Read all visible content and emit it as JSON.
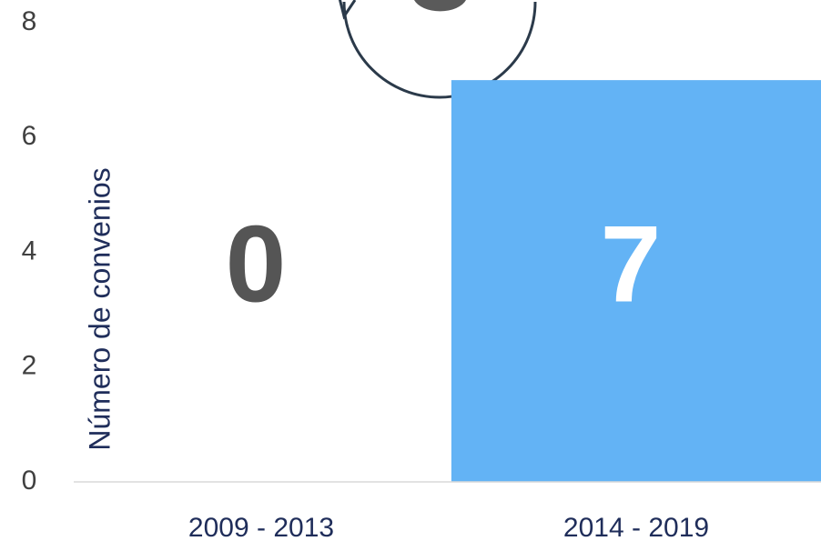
{
  "chart_data": {
    "type": "bar",
    "y_label": "Número de convenios",
    "categories": [
      "2009 - 2013",
      "2014 - 2019"
    ],
    "values": [
      0,
      7
    ],
    "color": "#63b3f5",
    "label_colors": [
      "#555555",
      "#ffffff"
    ],
    "ylim": [
      0,
      8
    ],
    "yticks": [
      0,
      2,
      4,
      6,
      8
    ],
    "grid": false
  }
}
